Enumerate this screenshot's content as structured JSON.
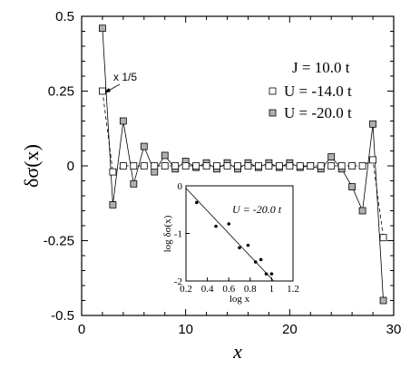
{
  "chart_data": {
    "type": "line",
    "xlabel": "x",
    "ylabel": "δσ(x)",
    "xlim": [
      0,
      30
    ],
    "ylim": [
      -0.5,
      0.5
    ],
    "x_ticks": [
      0,
      10,
      20,
      30
    ],
    "x_tick_labels": [
      "0",
      "10",
      "20",
      "30"
    ],
    "y_ticks": [
      0.5,
      0.25,
      0,
      -0.25,
      -0.5
    ],
    "y_tick_labels": [
      "0.5",
      "0.25",
      "0",
      "-0.25",
      "-0.5"
    ],
    "legend": {
      "title": "J = 10.0 t",
      "placement": "top-right",
      "entries": [
        "U = -14.0 t",
        "U = -20.0 t"
      ]
    },
    "annotation": "x 1/5",
    "series": [
      {
        "name": "U = -14.0 t",
        "marker": "open-square",
        "line": "dashed",
        "color": "#ffffff",
        "x": [
          2,
          3,
          4,
          5,
          6,
          7,
          8,
          9,
          10,
          11,
          12,
          13,
          14,
          15,
          16,
          17,
          18,
          19,
          20,
          21,
          22,
          23,
          24,
          25,
          26,
          27,
          28,
          29
        ],
        "y": [
          0.25,
          -0.02,
          0.0,
          0.0,
          0.0,
          0.0,
          0.0,
          0.0,
          0.0,
          0.0,
          0.0,
          0.0,
          0.0,
          0.0,
          0.0,
          0.0,
          0.0,
          0.0,
          0.0,
          0.0,
          0.0,
          0.0,
          0.0,
          0.0,
          0.0,
          0.0,
          0.02,
          -0.24
        ]
      },
      {
        "name": "U = -20.0 t",
        "marker": "filled-square",
        "line": "solid",
        "color": "#b0b0b0",
        "x": [
          2,
          3,
          4,
          5,
          6,
          7,
          8,
          9,
          10,
          11,
          12,
          13,
          14,
          15,
          16,
          17,
          18,
          19,
          20,
          21,
          22,
          23,
          24,
          25,
          26,
          27,
          28,
          29
        ],
        "y": [
          0.46,
          -0.13,
          0.15,
          -0.06,
          0.065,
          -0.02,
          0.035,
          -0.01,
          0.015,
          -0.005,
          0.01,
          -0.01,
          0.01,
          -0.01,
          0.01,
          -0.005,
          0.01,
          -0.005,
          0.01,
          -0.005,
          0.0,
          -0.01,
          0.03,
          -0.01,
          -0.07,
          -0.15,
          0.14,
          -0.45
        ]
      }
    ],
    "inset": {
      "type": "scatter",
      "title": "U = -20.0 t",
      "xlabel": "log x",
      "ylabel": "log δσ(x)",
      "xlim": [
        0.2,
        1.2
      ],
      "ylim": [
        -2,
        0
      ],
      "x_ticks": [
        0.2,
        0.4,
        0.6,
        0.8,
        1.0,
        1.2
      ],
      "x_tick_labels": [
        "0.2",
        "0.4",
        "0.6",
        "0.8",
        "1",
        "1.2"
      ],
      "y_ticks": [
        0,
        -1,
        -2
      ],
      "y_tick_labels": [
        "0",
        "-1",
        "-2"
      ],
      "points": {
        "x": [
          0.3,
          0.48,
          0.6,
          0.7,
          0.78,
          0.85,
          0.9,
          0.95,
          1.0
        ],
        "y": [
          -0.35,
          -0.85,
          -0.8,
          -1.3,
          -1.25,
          -1.6,
          -1.55,
          -1.85,
          -1.85
        ]
      },
      "fit_line": {
        "x": [
          0.2,
          1.02
        ],
        "y": [
          -0.05,
          -2.0
        ]
      }
    }
  }
}
